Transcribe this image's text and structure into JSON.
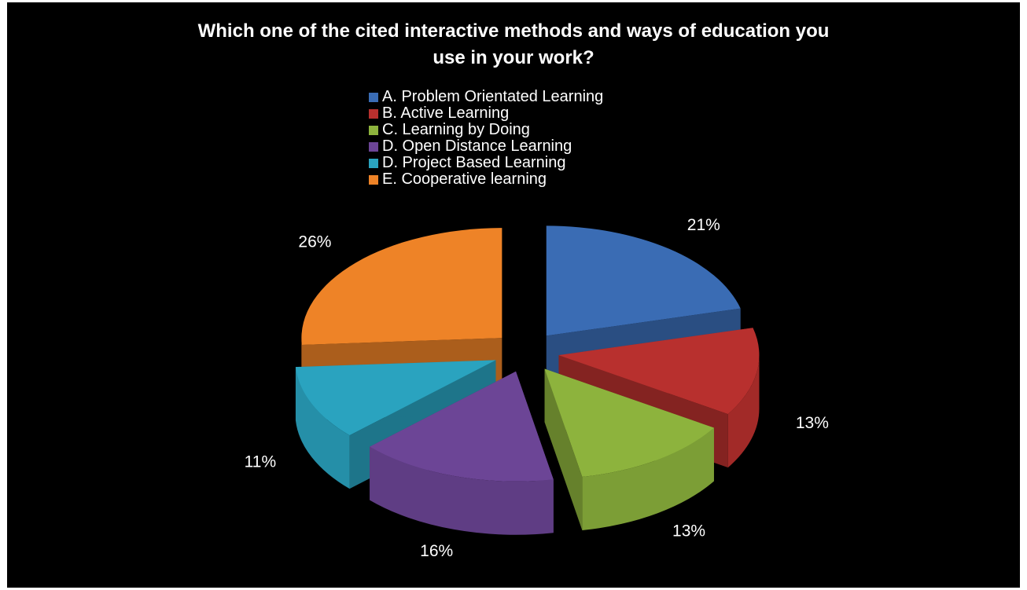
{
  "chart_data": {
    "type": "pie",
    "title": "Which one of the cited interactive methods and ways of education you use in your work?",
    "title_lines": [
      "Which one of the cited interactive methods and ways of education you",
      "use in your work?"
    ],
    "legend_position": "top",
    "exploded": true,
    "three_d": true,
    "slices": [
      {
        "label": "A. Problem Orientated Learning",
        "value": 21,
        "value_label": "21%",
        "color": "#3a6cb4"
      },
      {
        "label": "B. Active Learning",
        "value": 13,
        "value_label": "13%",
        "color": "#b8302e"
      },
      {
        "label": "C. Learning by Doing",
        "value": 13,
        "value_label": "13%",
        "color": "#8db33d"
      },
      {
        "label": "D. Open Distance Learning",
        "value": 16,
        "value_label": "16%",
        "color": "#6c4596"
      },
      {
        "label": "D. Project Based Learning",
        "value": 11,
        "value_label": "11%",
        "color": "#2aa3bf"
      },
      {
        "label": "E. Cooperative learning",
        "value": 26,
        "value_label": "26%",
        "color": "#ee8327"
      }
    ]
  }
}
